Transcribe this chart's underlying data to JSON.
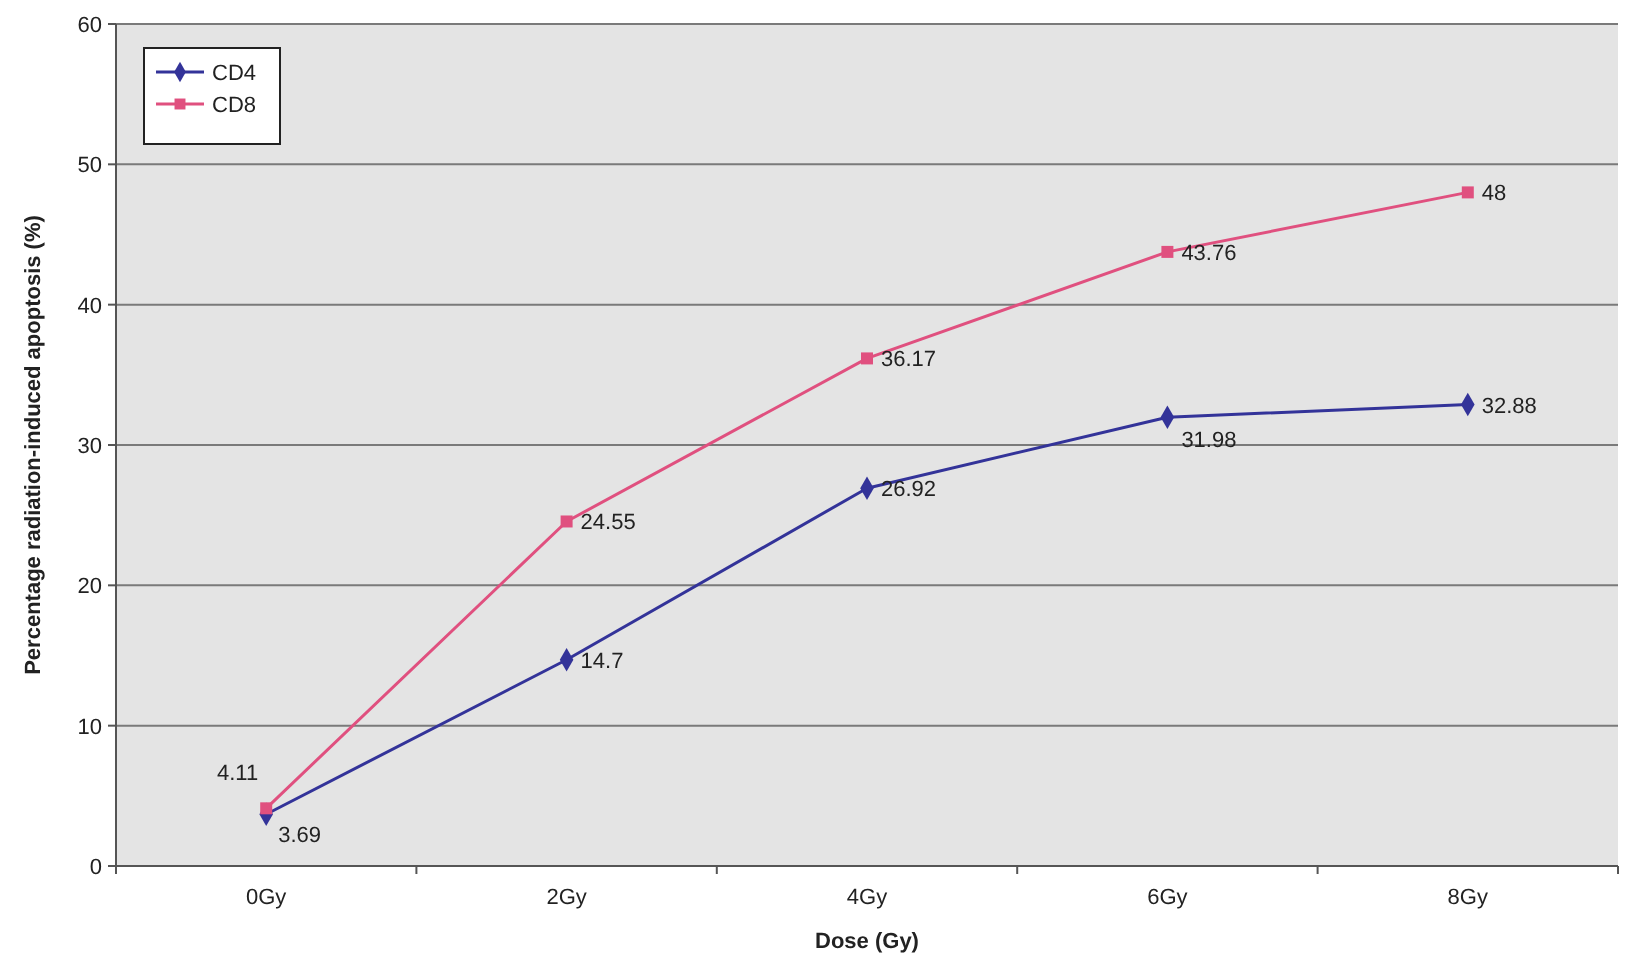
{
  "chart_data": {
    "type": "line",
    "xlabel": "Dose (Gy)",
    "ylabel": "Percentage radiation-induced apoptosis (%)",
    "categories": [
      "0Gy",
      "2Gy",
      "4Gy",
      "6Gy",
      "8Gy"
    ],
    "series": [
      {
        "name": "CD4",
        "color": "#333399",
        "marker": "diamond",
        "values": [
          3.69,
          14.7,
          26.92,
          31.98,
          32.88
        ]
      },
      {
        "name": "CD8",
        "color": "#e0507f",
        "marker": "square",
        "values": [
          4.11,
          24.55,
          36.17,
          43.76,
          48
        ]
      }
    ],
    "ylim": [
      0,
      60
    ],
    "yticks": [
      0,
      10,
      20,
      30,
      40,
      50,
      60
    ],
    "grid": "y",
    "legend": "top left",
    "data_labels": true,
    "line_style": "solid"
  }
}
